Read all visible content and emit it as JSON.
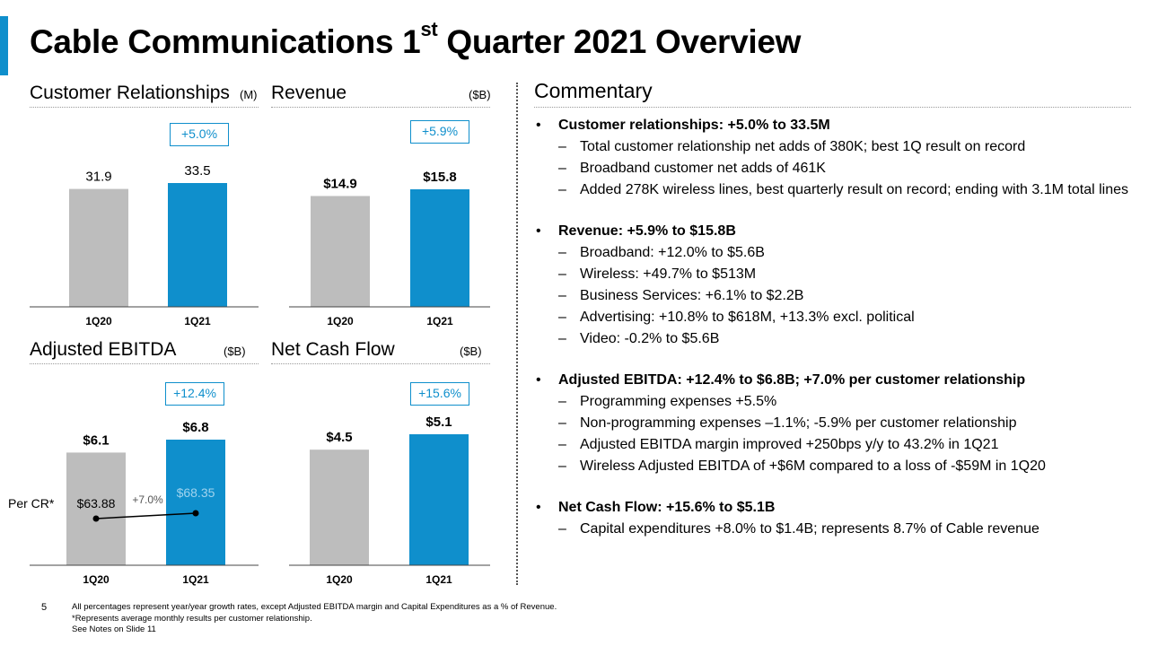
{
  "title": {
    "main": "Cable Communications 1",
    "sup": "st",
    "rest": " Quarter 2021 Overview"
  },
  "colors": {
    "accent": "#0f8fcc",
    "prior": "#bdbdbd"
  },
  "panels": {
    "customers": {
      "title": "Customer Relationships",
      "unit": "(M)",
      "growth": "+5.0%"
    },
    "revenue": {
      "title": "Revenue",
      "unit": "($B)",
      "growth": "+5.9%"
    },
    "ebitda": {
      "title": "Adjusted EBITDA",
      "unit": "($B)",
      "growth": "+12.4%"
    },
    "cashflow": {
      "title": "Net Cash Flow",
      "unit": "($B)",
      "growth": "+15.6%"
    }
  },
  "chart_data": [
    {
      "type": "bar",
      "title": "Customer Relationships",
      "unit": "(M)",
      "categories": [
        "1Q20",
        "1Q21"
      ],
      "values": [
        31.9,
        33.5
      ],
      "labels": [
        "31.9",
        "33.5"
      ],
      "growth": "+5.0%"
    },
    {
      "type": "bar",
      "title": "Revenue",
      "unit": "($B)",
      "categories": [
        "1Q20",
        "1Q21"
      ],
      "values": [
        14.9,
        15.8
      ],
      "labels": [
        "$14.9",
        "$15.8"
      ],
      "growth": "+5.9%"
    },
    {
      "type": "bar",
      "title": "Adjusted EBITDA",
      "unit": "($B)",
      "categories": [
        "1Q20",
        "1Q21"
      ],
      "values": [
        6.1,
        6.8
      ],
      "labels": [
        "$6.1",
        "$6.8"
      ],
      "growth": "+12.4%",
      "per_cr": {
        "label": "Per CR*",
        "values": [
          63.88,
          68.35
        ],
        "labels": [
          "$63.88",
          "$68.35"
        ],
        "growth": "+7.0%"
      }
    },
    {
      "type": "bar",
      "title": "Net Cash Flow",
      "unit": "($B)",
      "categories": [
        "1Q20",
        "1Q21"
      ],
      "values": [
        4.5,
        5.1
      ],
      "labels": [
        "$4.5",
        "$5.1"
      ],
      "growth": "+15.6%"
    }
  ],
  "commentary": {
    "title": "Commentary",
    "groups": [
      {
        "headline": "Customer relationships: +5.0% to 33.5M",
        "items": [
          "Total customer relationship net adds of 380K; best 1Q result on record",
          "Broadband customer net adds of 461K",
          "Added 278K wireless lines, best quarterly result on record; ending with 3.1M total lines"
        ]
      },
      {
        "headline": "Revenue: +5.9% to $15.8B",
        "items": [
          "Broadband: +12.0% to $5.6B",
          "Wireless: +49.7% to $513M",
          "Business Services: +6.1% to $2.2B",
          "Advertising: +10.8% to $618M, +13.3% excl. political",
          "Video: -0.2% to $5.6B"
        ]
      },
      {
        "headline": "Adjusted EBITDA: +12.4% to $6.8B; +7.0% per customer relationship",
        "items": [
          "Programming expenses +5.5%",
          "Non-programming expenses –1.1%; -5.9% per customer relationship",
          "Adjusted EBITDA margin improved +250bps y/y to 43.2% in 1Q21",
          "Wireless Adjusted EBITDA of +$6M compared to a loss of -$59M in 1Q20"
        ]
      },
      {
        "headline": "Net Cash Flow: +15.6% to $5.1B",
        "items": [
          "Capital expenditures +8.0% to $1.4B; represents 8.7% of Cable revenue"
        ]
      }
    ]
  },
  "footer": {
    "page_number": "5",
    "notes": [
      "All percentages represent year/year growth rates, except Adjusted EBITDA margin and Capital Expenditures as a % of Revenue.",
      "*Represents average monthly results per customer relationship.",
      "See Notes on Slide 11"
    ]
  }
}
